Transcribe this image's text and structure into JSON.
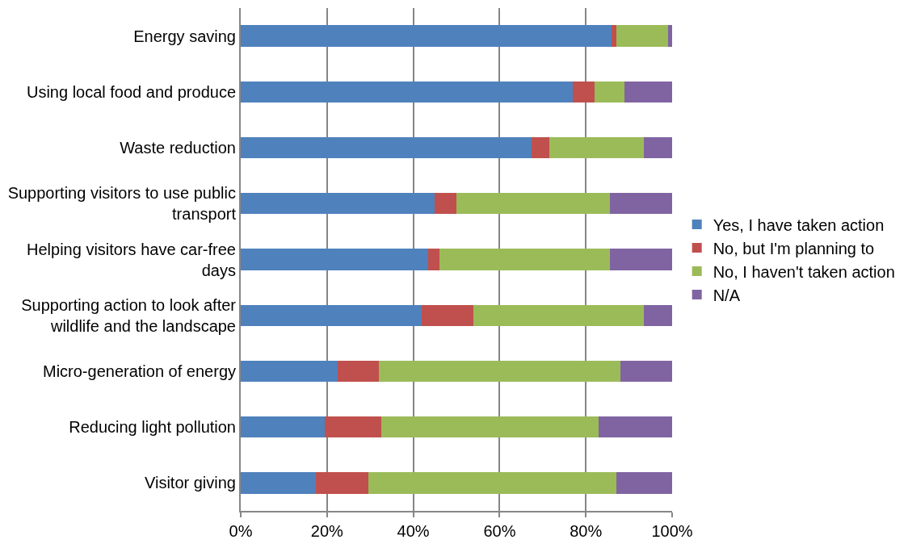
{
  "chart_data": {
    "type": "bar",
    "orientation": "horizontal",
    "stacked": true,
    "categories": [
      "Energy saving",
      "Using local food and produce",
      "Waste reduction",
      "Supporting visitors to use public transport",
      "Helping visitors have car-free days",
      "Supporting action to look after wildlife and the landscape",
      "Micro-generation of energy",
      "Reducing light pollution",
      "Visitor giving"
    ],
    "series": [
      {
        "name": "Yes, I have taken action",
        "color": "#4f81bd",
        "values": [
          86,
          77,
          67.5,
          45,
          43.5,
          42,
          22.5,
          19.5,
          17.5
        ]
      },
      {
        "name": "No, but I'm planning to",
        "color": "#c0504d",
        "values": [
          1,
          5,
          4,
          5,
          2.5,
          12,
          9.5,
          13,
          12
        ]
      },
      {
        "name": "No, I haven't taken action",
        "color": "#9bbb59",
        "values": [
          12,
          7,
          22,
          35.5,
          39.5,
          39.5,
          56,
          50.5,
          57.5
        ]
      },
      {
        "name": "N/A",
        "color": "#8064a2",
        "values": [
          1,
          11,
          6.5,
          14.5,
          14.5,
          6.5,
          12,
          17,
          13
        ]
      }
    ],
    "xlim": [
      0,
      100
    ],
    "xticks": [
      {
        "value": 0,
        "label": "0%"
      },
      {
        "value": 20,
        "label": "20%"
      },
      {
        "value": 40,
        "label": "40%"
      },
      {
        "value": 60,
        "label": "60%"
      },
      {
        "value": 80,
        "label": "80%"
      },
      {
        "value": 100,
        "label": "100%"
      }
    ],
    "grid": "x",
    "legend": "right"
  }
}
